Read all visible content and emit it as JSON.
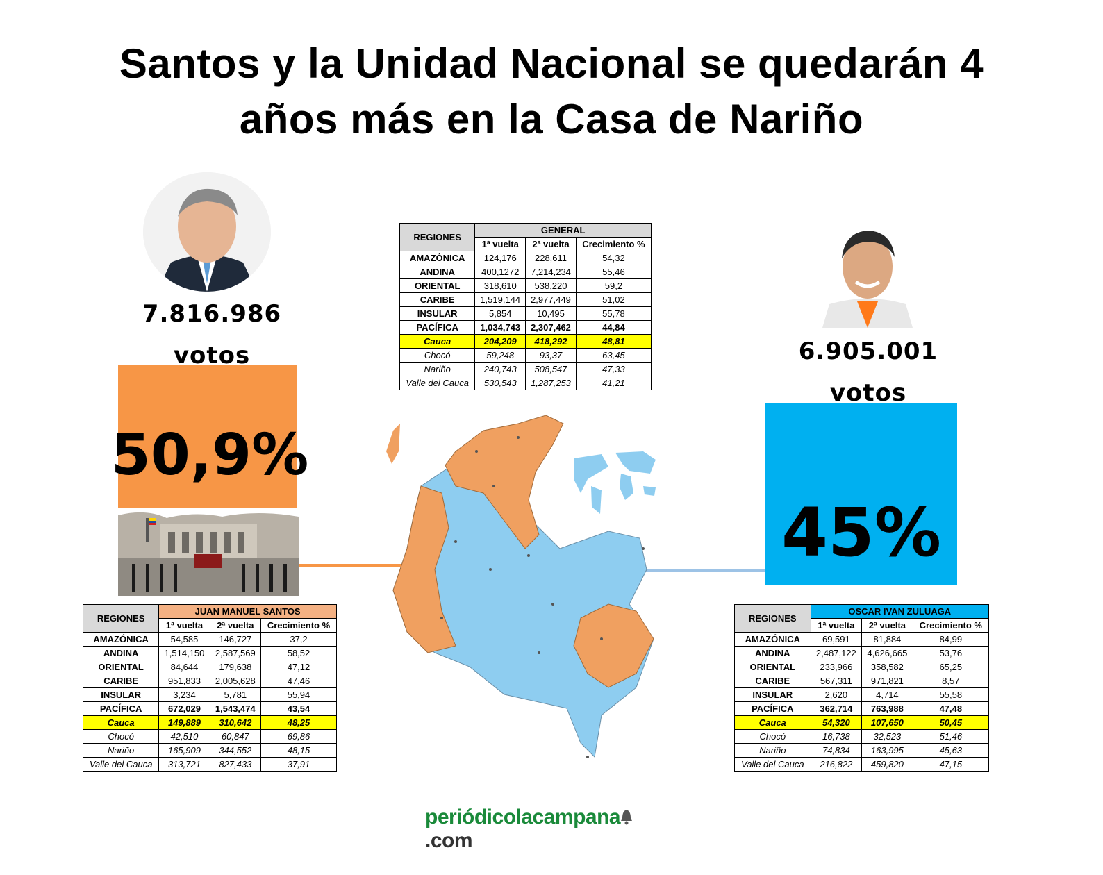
{
  "title": {
    "line1": "Santos y la Unidad Nacional se quedarán 4",
    "line2": "años más en la Casa de Nariño"
  },
  "santos": {
    "votes": "7.816.986",
    "votes_label": "votos",
    "percent": "50,9%",
    "color": "#f79646"
  },
  "zuluaga": {
    "votes": "6.905.001",
    "votes_label": "votos",
    "percent": "45%",
    "color": "#00b0f0"
  },
  "map_colors": {
    "santos_regions": "#f0a060",
    "zuluaga_regions": "#8ecdf0"
  },
  "tables": {
    "general": {
      "title": "GENERAL",
      "regions_header": "REGIONES",
      "columns": [
        "1ª vuelta",
        "2ª vuelta",
        "Crecimiento %"
      ],
      "rows": [
        {
          "region": "AMAZÓNICA",
          "v1": "124,176",
          "v2": "228,611",
          "growth": "54,32"
        },
        {
          "region": "ANDINA",
          "v1": "400,1272",
          "v2": "7,214,234",
          "growth": "55,46"
        },
        {
          "region": "ORIENTAL",
          "v1": "318,610",
          "v2": "538,220",
          "growth": "59,2"
        },
        {
          "region": "CARIBE",
          "v1": "1,519,144",
          "v2": "2,977,449",
          "growth": "51,02"
        },
        {
          "region": "INSULAR",
          "v1": "5,854",
          "v2": "10,495",
          "growth": "55,78"
        },
        {
          "region": "PACÍFICA",
          "v1": "1,034,743",
          "v2": "2,307,462",
          "growth": "44,84"
        },
        {
          "region": "Cauca",
          "v1": "204,209",
          "v2": "418,292",
          "growth": "48,81"
        },
        {
          "region": "Chocó",
          "v1": "59,248",
          "v2": "93,37",
          "growth": "63,45"
        },
        {
          "region": "Nariño",
          "v1": "240,743",
          "v2": "508,547",
          "growth": "47,33"
        },
        {
          "region": "Valle del Cauca",
          "v1": "530,543",
          "v2": "1,287,253",
          "growth": "41,21"
        }
      ]
    },
    "santos": {
      "title": "JUAN MANUEL SANTOS",
      "regions_header": "REGIONES",
      "columns": [
        "1ª vuelta",
        "2ª vuelta",
        "Crecimiento %"
      ],
      "rows": [
        {
          "region": "AMAZÓNICA",
          "v1": "54,585",
          "v2": "146,727",
          "growth": "37,2"
        },
        {
          "region": "ANDINA",
          "v1": "1,514,150",
          "v2": "2,587,569",
          "growth": "58,52"
        },
        {
          "region": "ORIENTAL",
          "v1": "84,644",
          "v2": "179,638",
          "growth": "47,12"
        },
        {
          "region": "CARIBE",
          "v1": "951,833",
          "v2": "2,005,628",
          "growth": "47,46"
        },
        {
          "region": "INSULAR",
          "v1": "3,234",
          "v2": "5,781",
          "growth": "55,94"
        },
        {
          "region": "PACÍFICA",
          "v1": "672,029",
          "v2": "1,543,474",
          "growth": "43,54"
        },
        {
          "region": "Cauca",
          "v1": "149,889",
          "v2": "310,642",
          "growth": "48,25"
        },
        {
          "region": "Chocó",
          "v1": "42,510",
          "v2": "60,847",
          "growth": "69,86"
        },
        {
          "region": "Nariño",
          "v1": "165,909",
          "v2": "344,552",
          "growth": "48,15"
        },
        {
          "region": "Valle del Cauca",
          "v1": "313,721",
          "v2": "827,433",
          "growth": "37,91"
        }
      ]
    },
    "zuluaga": {
      "title": "OSCAR IVAN ZULUAGA",
      "regions_header": "REGIONES",
      "columns": [
        "1ª vuelta",
        "2ª vuelta",
        "Crecimiento %"
      ],
      "rows": [
        {
          "region": "AMAZÓNICA",
          "v1": "69,591",
          "v2": "81,884",
          "growth": "84,99"
        },
        {
          "region": "ANDINA",
          "v1": "2,487,122",
          "v2": "4,626,665",
          "growth": "53,76"
        },
        {
          "region": "ORIENTAL",
          "v1": "233,966",
          "v2": "358,582",
          "growth": "65,25"
        },
        {
          "region": "CARIBE",
          "v1": "567,311",
          "v2": "971,821",
          "growth": "8,57"
        },
        {
          "region": "INSULAR",
          "v1": "2,620",
          "v2": "4,714",
          "growth": "55,58"
        },
        {
          "region": "PACÍFICA",
          "v1": "362,714",
          "v2": "763,988",
          "growth": "47,48"
        },
        {
          "region": "Cauca",
          "v1": "54,320",
          "v2": "107,650",
          "growth": "50,45"
        },
        {
          "region": "Chocó",
          "v1": "16,738",
          "v2": "32,523",
          "growth": "51,46"
        },
        {
          "region": "Nariño",
          "v1": "74,834",
          "v2": "163,995",
          "growth": "45,63"
        },
        {
          "region": "Valle del Cauca",
          "v1": "216,822",
          "v2": "459,820",
          "growth": "47,15"
        }
      ]
    }
  },
  "logo": {
    "part1": "periódico",
    "part2": "lacampana",
    "part3": ".com"
  }
}
